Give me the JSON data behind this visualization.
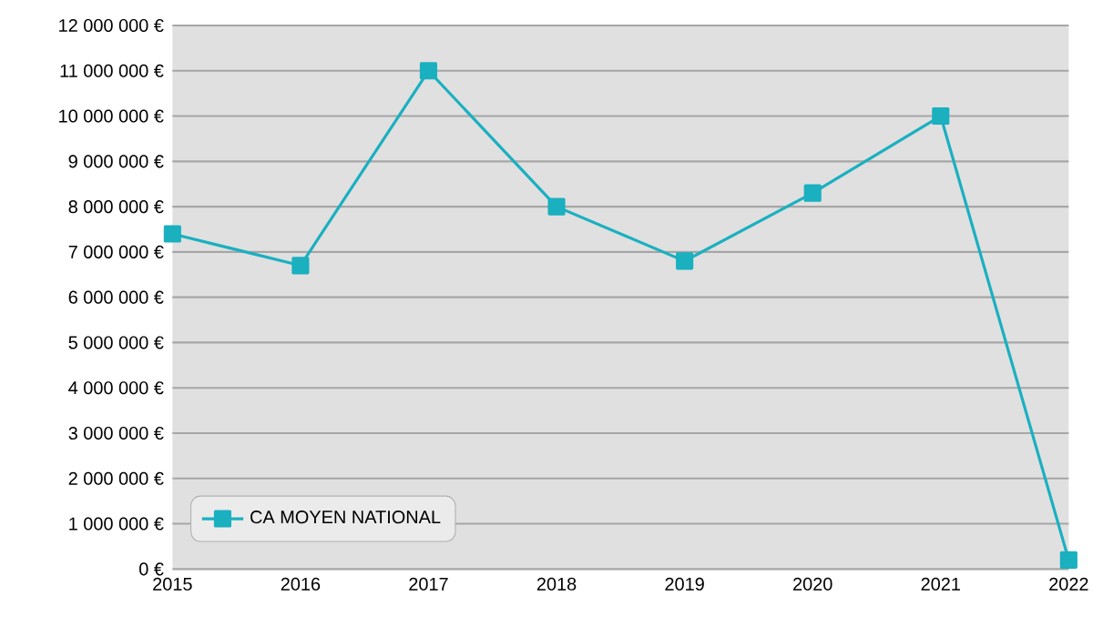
{
  "chart_data": {
    "type": "line",
    "categories": [
      "2015",
      "2016",
      "2017",
      "2018",
      "2019",
      "2020",
      "2021",
      "2022"
    ],
    "series": [
      {
        "name": "CA MOYEN NATIONAL",
        "color": "#1ab0c0",
        "values": [
          7400000,
          6700000,
          11000000,
          8000000,
          6800000,
          8300000,
          10000000,
          200000
        ]
      }
    ],
    "ylim": [
      0,
      12000000
    ],
    "yticks": [
      {
        "value": 0,
        "label": "0 €"
      },
      {
        "value": 1000000,
        "label": "1 000 000 €"
      },
      {
        "value": 2000000,
        "label": "2 000 000 €"
      },
      {
        "value": 3000000,
        "label": "3 000 000 €"
      },
      {
        "value": 4000000,
        "label": "4 000 000 €"
      },
      {
        "value": 5000000,
        "label": "5 000 000 €"
      },
      {
        "value": 6000000,
        "label": "6 000 000 €"
      },
      {
        "value": 7000000,
        "label": "7 000 000 €"
      },
      {
        "value": 8000000,
        "label": "8 000 000 €"
      },
      {
        "value": 9000000,
        "label": "9 000 000 €"
      },
      {
        "value": 10000000,
        "label": "10 000 000 €"
      },
      {
        "value": 11000000,
        "label": "11 000 000 €"
      },
      {
        "value": 12000000,
        "label": "12 000 000 €"
      }
    ],
    "grid": "y",
    "legend": "bottom left",
    "marker": "square",
    "line_style": "solid"
  }
}
